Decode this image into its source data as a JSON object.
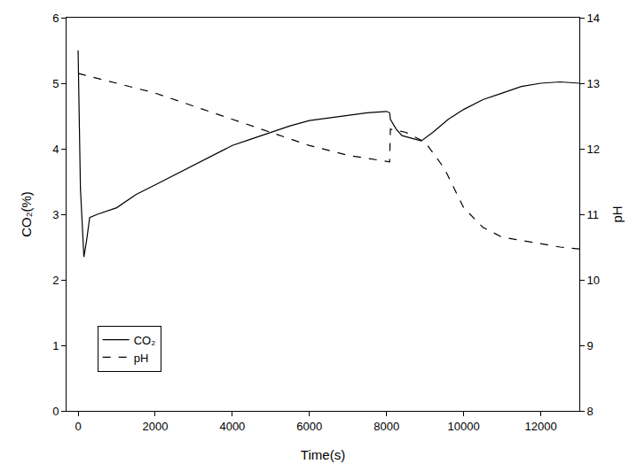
{
  "chart_data": {
    "type": "line",
    "x_label": "Time(s)",
    "y_label": "CO₂(%)",
    "y2_label": "pH",
    "xlim": [
      -300,
      13000
    ],
    "xticks": [
      0,
      2000,
      4000,
      6000,
      8000,
      10000,
      12000
    ],
    "ylim": [
      0,
      6
    ],
    "yticks": [
      0,
      1,
      2,
      3,
      4,
      5,
      6
    ],
    "y2lim": [
      8,
      14
    ],
    "y2ticks": [
      8,
      9,
      10,
      11,
      12,
      13,
      14
    ],
    "grid": false,
    "legend": "lower left",
    "series": [
      {
        "name": "CO₂",
        "color": "#000000",
        "line_style": "solid",
        "axis": "y",
        "x": [
          0,
          60,
          150,
          220,
          300,
          500,
          1000,
          1500,
          2000,
          2500,
          3000,
          3500,
          4000,
          4500,
          5000,
          5500,
          6000,
          6500,
          7000,
          7500,
          8000,
          8080,
          8100,
          8250,
          8400,
          8700,
          8900,
          9200,
          9600,
          10000,
          10500,
          11000,
          11500,
          12000,
          12500,
          13000
        ],
        "values": [
          5.5,
          3.4,
          2.35,
          2.6,
          2.95,
          3.0,
          3.1,
          3.3,
          3.45,
          3.6,
          3.75,
          3.9,
          4.05,
          4.15,
          4.25,
          4.35,
          4.43,
          4.47,
          4.5,
          4.55,
          4.57,
          4.55,
          4.45,
          4.3,
          4.2,
          4.15,
          4.12,
          4.25,
          4.45,
          4.6,
          4.75,
          4.85,
          4.95,
          5.0,
          5.02,
          5.0
        ]
      },
      {
        "name": "pH",
        "color": "#000000",
        "line_style": "dash",
        "axis": "y2",
        "x": [
          0,
          1000,
          2000,
          3000,
          4000,
          5000,
          6000,
          7000,
          8000,
          8080,
          8100,
          8500,
          9000,
          9500,
          10000,
          10500,
          11000,
          11500,
          12000,
          12500,
          13000
        ],
        "values": [
          13.15,
          13.0,
          12.85,
          12.65,
          12.45,
          12.25,
          12.05,
          11.9,
          11.8,
          11.8,
          12.3,
          12.25,
          12.1,
          11.7,
          11.1,
          10.8,
          10.65,
          10.6,
          10.55,
          10.5,
          10.47
        ]
      }
    ]
  }
}
